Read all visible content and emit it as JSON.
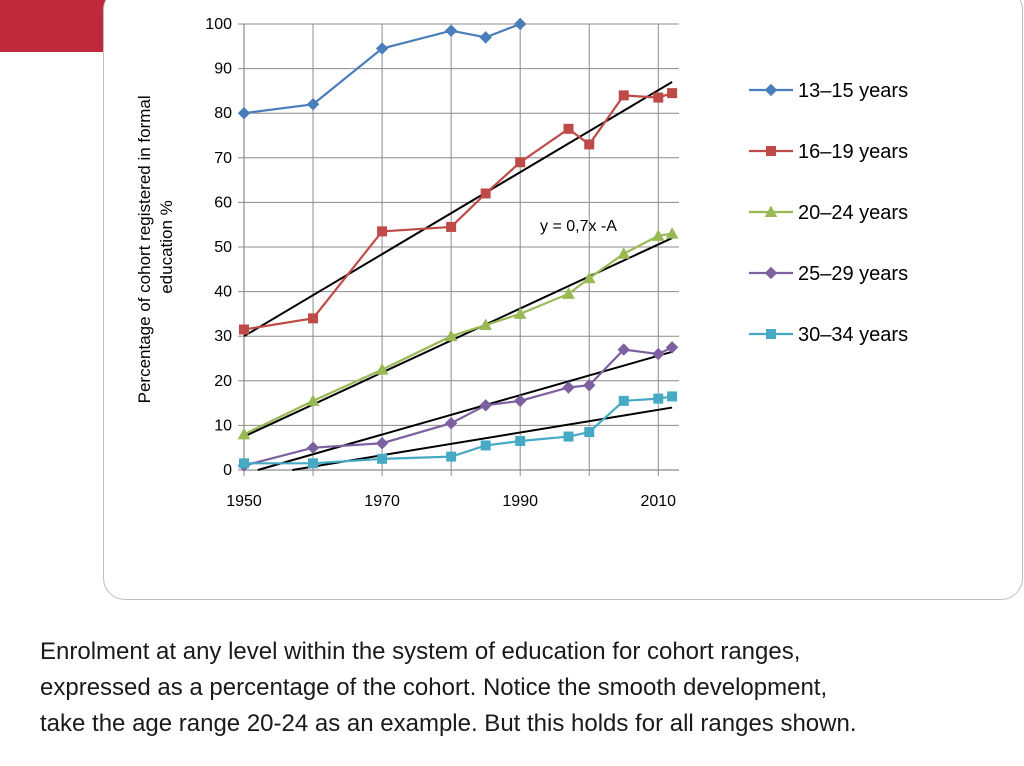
{
  "slide": {
    "accent_color": "#c0283b",
    "caption_lines": [
      "Enrolment at any level within the system of education for cohort ranges,",
      "expressed as a percentage of the cohort. Notice the smooth development,",
      "take the age range 20-24 as an example. But this holds for all ranges shown."
    ]
  },
  "chart_data": {
    "type": "line",
    "title": "",
    "xlabel": "",
    "ylabel_lines": [
      "Percentage of cohort registered in formal",
      "education %"
    ],
    "xlim": [
      1950,
      2013
    ],
    "ylim": [
      0,
      100
    ],
    "x_ticks": [
      1950,
      1970,
      1990,
      2010
    ],
    "y_ticks": [
      0,
      10,
      20,
      30,
      40,
      50,
      60,
      70,
      80,
      90,
      100
    ],
    "grid": true,
    "legend_position": "right",
    "annotation": "y = 0,7x -A",
    "series": [
      {
        "name": "13–15 years",
        "color": "#4a7ebb",
        "marker": "diamond",
        "points": [
          [
            1950,
            80
          ],
          [
            1960,
            82
          ],
          [
            1970,
            94.5
          ],
          [
            1980,
            98.5
          ],
          [
            1985,
            97
          ],
          [
            1990,
            100
          ]
        ]
      },
      {
        "name": "16–19 years",
        "color": "#be4b48",
        "marker": "square",
        "points": [
          [
            1950,
            31.5
          ],
          [
            1960,
            34
          ],
          [
            1970,
            53.5
          ],
          [
            1980,
            54.5
          ],
          [
            1985,
            62
          ],
          [
            1990,
            69
          ],
          [
            1997,
            76.5
          ],
          [
            2000,
            73
          ],
          [
            2005,
            84
          ],
          [
            2010,
            83.5
          ],
          [
            2012,
            84.5
          ]
        ]
      },
      {
        "name": "20–24 years",
        "color": "#98b954",
        "marker": "triangle",
        "points": [
          [
            1950,
            8
          ],
          [
            1960,
            15.5
          ],
          [
            1970,
            22.5
          ],
          [
            1980,
            30
          ],
          [
            1985,
            32.5
          ],
          [
            1990,
            35
          ],
          [
            1997,
            39.5
          ],
          [
            2000,
            43
          ],
          [
            2005,
            48.5
          ],
          [
            2010,
            52.5
          ],
          [
            2012,
            53
          ]
        ]
      },
      {
        "name": "25–29 years",
        "color": "#7d60a0",
        "marker": "diamond",
        "points": [
          [
            1950,
            1
          ],
          [
            1960,
            5
          ],
          [
            1970,
            6
          ],
          [
            1980,
            10.5
          ],
          [
            1985,
            14.5
          ],
          [
            1990,
            15.5
          ],
          [
            1997,
            18.5
          ],
          [
            2000,
            19
          ],
          [
            2005,
            27
          ],
          [
            2010,
            26
          ],
          [
            2012,
            27.5
          ]
        ]
      },
      {
        "name": "30–34 years",
        "color": "#46aac5",
        "marker": "square",
        "points": [
          [
            1950,
            1.5
          ],
          [
            1960,
            1.5
          ],
          [
            1970,
            2.5
          ],
          [
            1980,
            3
          ],
          [
            1985,
            5.5
          ],
          [
            1990,
            6.5
          ],
          [
            1997,
            7.5
          ],
          [
            2000,
            8.5
          ],
          [
            2005,
            15.5
          ],
          [
            2010,
            16
          ],
          [
            2012,
            16.5
          ]
        ]
      }
    ],
    "trendlines": [
      {
        "color": "#000000",
        "points": [
          [
            1950,
            30
          ],
          [
            2012,
            87
          ]
        ]
      },
      {
        "color": "#000000",
        "points": [
          [
            1950,
            7.5
          ],
          [
            2012,
            52
          ]
        ]
      },
      {
        "color": "#000000",
        "points": [
          [
            1952,
            0
          ],
          [
            2012,
            26.5
          ]
        ]
      },
      {
        "color": "#000000",
        "points": [
          [
            1957,
            0
          ],
          [
            2012,
            14
          ]
        ]
      }
    ]
  }
}
